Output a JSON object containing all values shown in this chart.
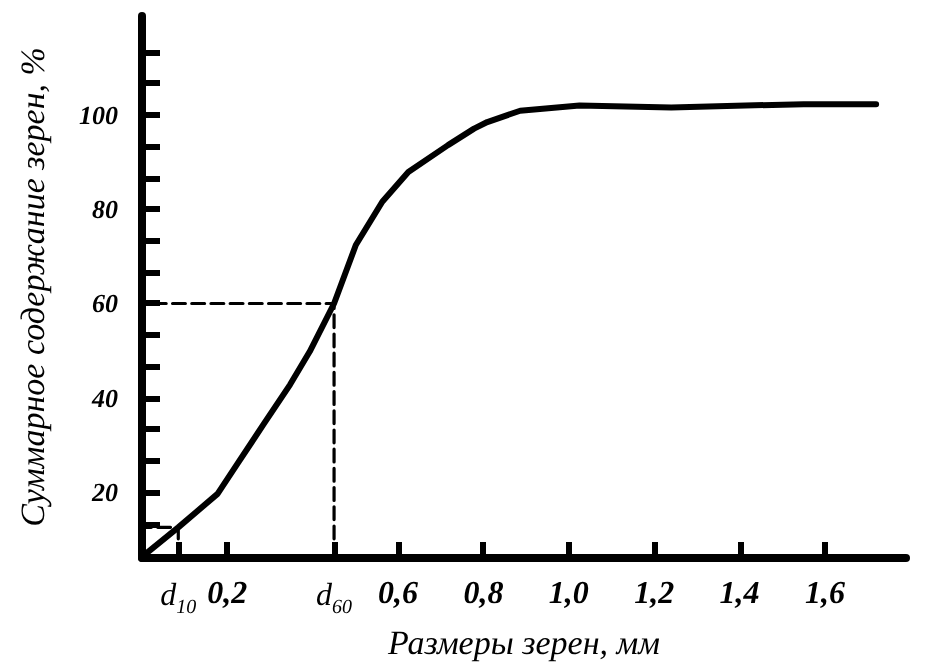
{
  "chart_data": {
    "type": "line",
    "xlabel": "Размеры зерен, мм",
    "ylabel": "Суммарное содержание зерен, %",
    "xlim": [
      0,
      1.79
    ],
    "ylim": [
      6,
      121
    ],
    "annotations": [
      {
        "text": "d$_{10}$",
        "x": 0.085,
        "y": 6
      },
      {
        "text": "d$_{60}$",
        "x": 0.45,
        "y": 6
      }
    ],
    "xticks": [
      {
        "value": 0.085,
        "label": null
      },
      {
        "value": 0.2,
        "label": "0,2"
      },
      {
        "value": 0.45,
        "label": null
      },
      {
        "value": 0.6,
        "label": "0,6"
      },
      {
        "value": 0.8,
        "label": "0,8"
      },
      {
        "value": 1.0,
        "label": "1,0"
      },
      {
        "value": 1.2,
        "label": "1,2"
      },
      {
        "value": 1.4,
        "label": "1,4"
      },
      {
        "value": 1.6,
        "label": "1,6"
      }
    ],
    "yticks": [
      {
        "value": 13.3,
        "label": null
      },
      20,
      {
        "value": 26.7,
        "label": null
      },
      {
        "value": 33.3,
        "label": null
      },
      40,
      {
        "value": 46.7,
        "label": null
      },
      {
        "value": 53.3,
        "label": null
      },
      60,
      {
        "value": 66.7,
        "label": null
      },
      {
        "value": 73.3,
        "label": null
      },
      80,
      {
        "value": 86.7,
        "label": null
      },
      {
        "value": 93.3,
        "label": null
      },
      100,
      {
        "value": 106.7,
        "label": null
      },
      {
        "value": 113.3,
        "label": null
      }
    ],
    "grid": false,
    "marker": "none",
    "series": [
      {
        "color": "#000000",
        "line_style": "solid",
        "x": [
          0.005,
          0.085,
          0.177,
          0.223,
          0.285,
          0.347,
          0.393,
          0.45,
          0.501,
          0.563,
          0.624,
          0.717,
          0.778,
          0.809,
          0.886,
          1.025,
          1.24,
          1.55,
          1.72
        ],
        "values": [
          6.6,
          12.5,
          19.6,
          25.9,
          34.4,
          42.8,
          49.8,
          60,
          72.4,
          81.6,
          87.9,
          93.6,
          97.1,
          98.5,
          100.9,
          102,
          101.6,
          102.3,
          102.3
        ]
      },
      {
        "color": "#000000",
        "line_style": "dashed",
        "x": [
          0.45,
          0.45,
          0
        ],
        "values": [
          6,
          60,
          60
        ]
      },
      {
        "color": "#000000",
        "line_style": "dashed",
        "x": [
          0.085,
          0.085,
          0
        ],
        "values": [
          6,
          12.5,
          12.5
        ]
      }
    ]
  }
}
